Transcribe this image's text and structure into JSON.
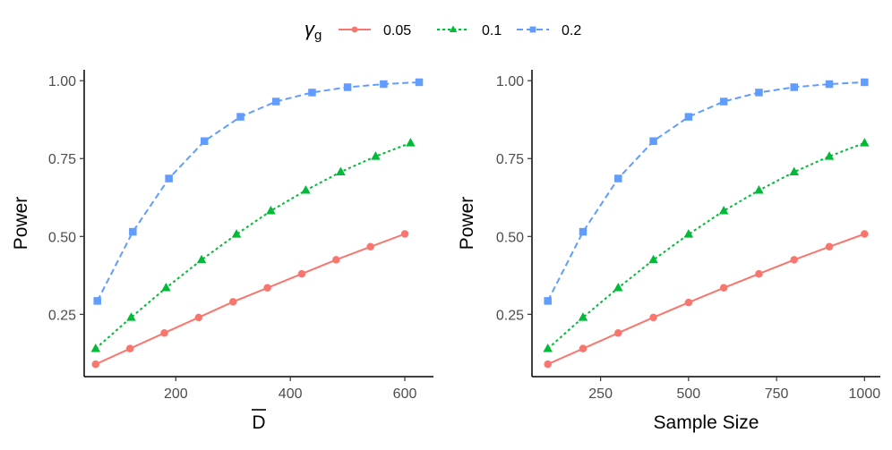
{
  "legend": {
    "title": "γ",
    "title_sub": "g",
    "entries": [
      {
        "label": "0.05",
        "color": "#F8766D",
        "marker": "circle",
        "dash": "solid"
      },
      {
        "label": "0.1",
        "color": "#00BA38",
        "marker": "triangle",
        "dash": "dotted"
      },
      {
        "label": "0.2",
        "color": "#619CFF",
        "marker": "square",
        "dash": "dashed"
      }
    ]
  },
  "chart_data": [
    {
      "type": "line",
      "xlabel": "D",
      "xlabel_overline": true,
      "ylabel": "Power",
      "xlim": [
        40,
        650
      ],
      "ylim": [
        0.05,
        1.035
      ],
      "xticks": [
        200,
        400,
        600
      ],
      "yticks": [
        0.25,
        0.5,
        0.75,
        1.0
      ],
      "ytick_labels": [
        "0.25",
        "0.50",
        "0.75",
        "1.00"
      ],
      "grid": false,
      "series": [
        {
          "name": "0.05",
          "x": [
            60,
            120,
            180,
            240,
            300,
            360,
            420,
            480,
            540,
            600
          ],
          "y": [
            0.09,
            0.14,
            0.19,
            0.24,
            0.29,
            0.335,
            0.38,
            0.425,
            0.467,
            0.508
          ]
        },
        {
          "name": "0.1",
          "x": [
            60,
            122,
            183,
            245,
            306,
            366,
            427,
            488,
            549,
            610
          ],
          "y": [
            0.14,
            0.24,
            0.335,
            0.425,
            0.507,
            0.582,
            0.648,
            0.707,
            0.757,
            0.8
          ]
        },
        {
          "name": "0.2",
          "x": [
            63,
            125,
            188,
            250,
            313,
            375,
            438,
            500,
            563,
            625
          ],
          "y": [
            0.293,
            0.515,
            0.686,
            0.806,
            0.884,
            0.933,
            0.962,
            0.979,
            0.989,
            0.995
          ]
        }
      ]
    },
    {
      "type": "line",
      "xlabel": "Sample Size",
      "xlabel_overline": false,
      "ylabel": "Power",
      "xlim": [
        55,
        1045
      ],
      "ylim": [
        0.05,
        1.035
      ],
      "xticks": [
        250,
        500,
        750,
        1000
      ],
      "yticks": [
        0.25,
        0.5,
        0.75,
        1.0
      ],
      "ytick_labels": [
        "0.25",
        "0.50",
        "0.75",
        "1.00"
      ],
      "grid": false,
      "series": [
        {
          "name": "0.05",
          "x": [
            100,
            200,
            300,
            400,
            500,
            600,
            700,
            800,
            900,
            1000
          ],
          "y": [
            0.09,
            0.14,
            0.19,
            0.24,
            0.288,
            0.335,
            0.38,
            0.425,
            0.467,
            0.508
          ]
        },
        {
          "name": "0.1",
          "x": [
            100,
            200,
            300,
            400,
            500,
            600,
            700,
            800,
            900,
            1000
          ],
          "y": [
            0.14,
            0.24,
            0.335,
            0.425,
            0.507,
            0.582,
            0.648,
            0.707,
            0.757,
            0.8
          ]
        },
        {
          "name": "0.2",
          "x": [
            100,
            200,
            300,
            400,
            500,
            600,
            700,
            800,
            900,
            1000
          ],
          "y": [
            0.293,
            0.515,
            0.686,
            0.806,
            0.884,
            0.933,
            0.962,
            0.979,
            0.989,
            0.995
          ]
        }
      ]
    }
  ]
}
